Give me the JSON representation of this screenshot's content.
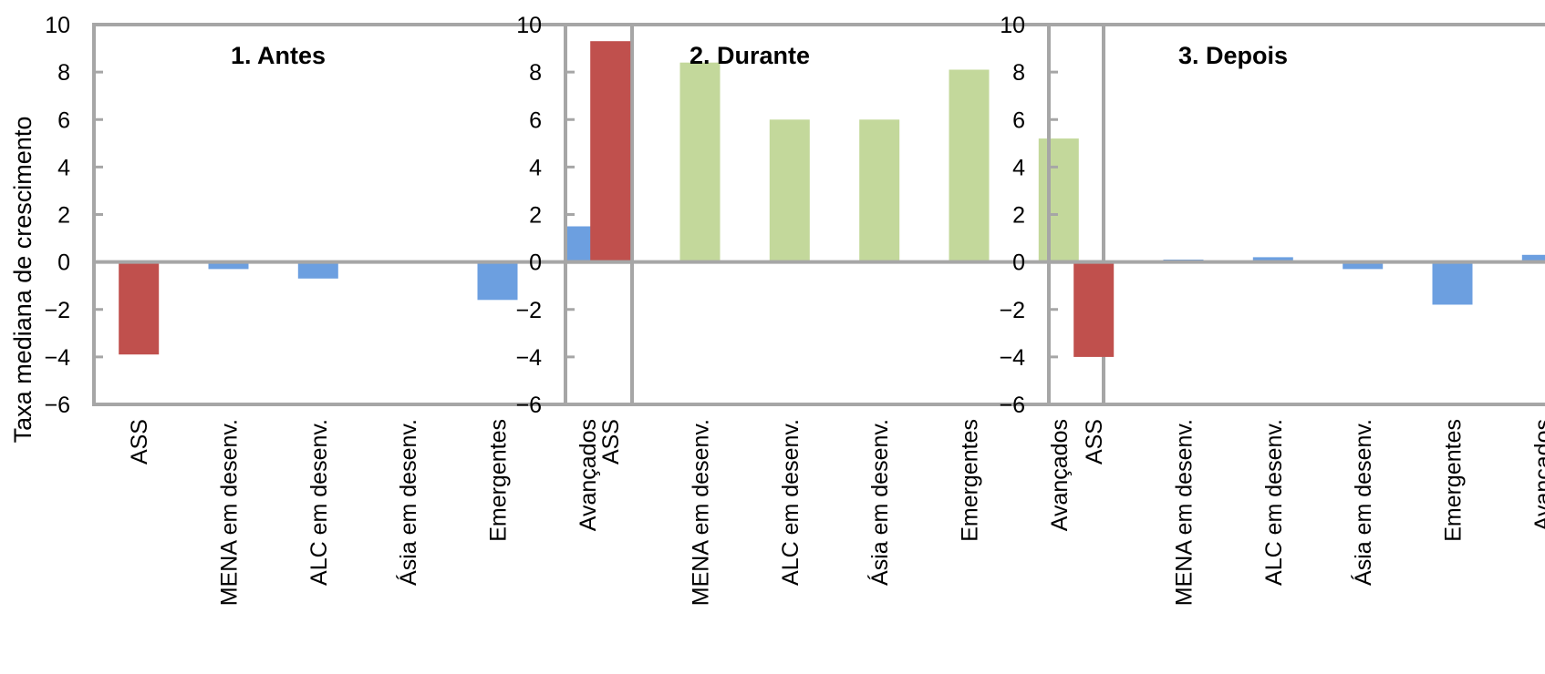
{
  "chart_data": [
    {
      "type": "bar",
      "title": "1. Antes",
      "ylabel": "Taxa mediana de crescimento",
      "categories": [
        "ASS",
        "MENA em desenv.",
        "ALC em desenv.",
        "Ásia em desenv.",
        "Emergentes",
        "Avançados"
      ],
      "values": [
        -3.9,
        -0.3,
        -0.7,
        0.0,
        -1.6,
        1.5
      ],
      "colors": [
        "#c0504d",
        "#6c9fe0",
        "#6c9fe0",
        "#6c9fe0",
        "#6c9fe0",
        "#6c9fe0"
      ],
      "ylim": [
        -6,
        10
      ],
      "yticks": [
        "10",
        "8",
        "6",
        "4",
        "2",
        "0",
        "−2",
        "−4",
        "−6"
      ],
      "grid": false
    },
    {
      "type": "bar",
      "title": "2. Durante",
      "ylabel": "",
      "categories": [
        "ASS",
        "MENA em desenv.",
        "ALC em desenv.",
        "Ásia em desenv.",
        "Emergentes",
        "Avançados"
      ],
      "values": [
        9.3,
        8.4,
        6.0,
        6.0,
        8.1,
        5.2
      ],
      "colors": [
        "#c0504d",
        "#c3d89b",
        "#c3d89b",
        "#c3d89b",
        "#c3d89b",
        "#c3d89b"
      ],
      "ylim": [
        -6,
        10
      ],
      "yticks": [
        "10",
        "8",
        "6",
        "4",
        "2",
        "0",
        "−2",
        "−4",
        "−6"
      ],
      "grid": false
    },
    {
      "type": "bar",
      "title": "3. Depois",
      "ylabel": "",
      "categories": [
        "ASS",
        "MENA em desenv.",
        "ALC em desenv.",
        "Ásia em desenv.",
        "Emergentes",
        "Avançados"
      ],
      "values": [
        -4.0,
        0.1,
        0.2,
        -0.3,
        -1.8,
        0.3
      ],
      "colors": [
        "#c0504d",
        "#6c9fe0",
        "#6c9fe0",
        "#6c9fe0",
        "#6c9fe0",
        "#6c9fe0"
      ],
      "ylim": [
        -6,
        10
      ],
      "yticks": [
        "10",
        "8",
        "6",
        "4",
        "2",
        "0",
        "−2",
        "−4",
        "−6"
      ],
      "grid": false
    }
  ],
  "colors": {
    "axis": "#a6a6a6",
    "text": "#000000"
  }
}
